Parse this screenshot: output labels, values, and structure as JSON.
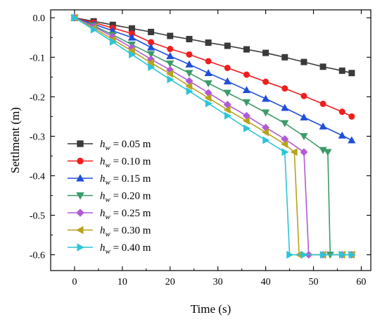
{
  "chart_data": {
    "type": "line",
    "xlabel": "Time (s)",
    "ylabel": "Settlment (m)",
    "xlim": [
      -5,
      62
    ],
    "ylim": [
      -0.64,
      0.02
    ],
    "xticks": [
      "0",
      "10",
      "20",
      "30",
      "40",
      "50",
      "60"
    ],
    "yticks": [
      "0.0",
      "-0.1",
      "-0.2",
      "-0.3",
      "-0.4",
      "-0.5",
      "-0.6"
    ],
    "xtick_values": [
      0,
      10,
      20,
      30,
      40,
      50,
      60
    ],
    "ytick_values": [
      0,
      -0.1,
      -0.2,
      -0.3,
      -0.4,
      -0.5,
      -0.6
    ],
    "legend_position": "lower-left",
    "series": [
      {
        "name": "h_w = 0.05 m",
        "legend_var": "h",
        "legend_sub": "w",
        "legend_rest": " = 0.05 m",
        "color": "#3a3a3a",
        "marker": "square",
        "x": [
          0,
          4,
          8,
          12,
          16,
          20,
          24,
          28,
          32,
          36,
          40,
          44,
          48,
          52,
          56,
          58
        ],
        "y": [
          0,
          -0.009,
          -0.018,
          -0.027,
          -0.036,
          -0.046,
          -0.054,
          -0.063,
          -0.071,
          -0.08,
          -0.089,
          -0.1,
          -0.112,
          -0.124,
          -0.134,
          -0.14
        ]
      },
      {
        "name": "h_w = 0.10 m",
        "legend_var": "h",
        "legend_sub": "w",
        "legend_rest": " = 0.10 m",
        "color": "#ef1f1f",
        "marker": "circle",
        "x": [
          0,
          4,
          8,
          12,
          16,
          20,
          24,
          28,
          32,
          36,
          40,
          44,
          48,
          52,
          56,
          58
        ],
        "y": [
          0,
          -0.012,
          -0.026,
          -0.04,
          -0.062,
          -0.079,
          -0.093,
          -0.11,
          -0.127,
          -0.144,
          -0.162,
          -0.179,
          -0.198,
          -0.218,
          -0.238,
          -0.25
        ]
      },
      {
        "name": "h_w = 0.15 m",
        "legend_var": "h",
        "legend_sub": "w",
        "legend_rest": " = 0.15 m",
        "color": "#1f4fd8",
        "marker": "triangle-up",
        "x": [
          0,
          4,
          8,
          12,
          16,
          20,
          24,
          28,
          32,
          36,
          40,
          44,
          48,
          52,
          56,
          58
        ],
        "y": [
          0,
          -0.016,
          -0.033,
          -0.05,
          -0.075,
          -0.097,
          -0.118,
          -0.14,
          -0.161,
          -0.183,
          -0.205,
          -0.228,
          -0.252,
          -0.275,
          -0.298,
          -0.31
        ]
      },
      {
        "name": "h_w = 0.20 m",
        "legend_var": "h",
        "legend_sub": "w",
        "legend_rest": " = 0.20 m",
        "color": "#3d9a6a",
        "marker": "triangle-down",
        "x": [
          0,
          4,
          8,
          12,
          16,
          20,
          24,
          28,
          32,
          36,
          40,
          44,
          48,
          52,
          53,
          53.5,
          56,
          58
        ],
        "y": [
          0,
          -0.02,
          -0.043,
          -0.068,
          -0.092,
          -0.116,
          -0.14,
          -0.166,
          -0.19,
          -0.214,
          -0.24,
          -0.267,
          -0.3,
          -0.335,
          -0.34,
          -0.6,
          -0.6,
          -0.6
        ]
      },
      {
        "name": "h_w = 0.25 m",
        "legend_var": "h",
        "legend_sub": "w",
        "legend_rest": " = 0.25 m",
        "color": "#b25ad6",
        "marker": "diamond",
        "x": [
          0,
          4,
          8,
          12,
          16,
          20,
          24,
          28,
          32,
          36,
          40,
          44,
          48,
          49,
          52,
          56,
          58
        ],
        "y": [
          0,
          -0.022,
          -0.048,
          -0.076,
          -0.105,
          -0.132,
          -0.16,
          -0.19,
          -0.22,
          -0.248,
          -0.278,
          -0.307,
          -0.34,
          -0.6,
          -0.6,
          -0.6,
          -0.6
        ]
      },
      {
        "name": "h_w = 0.30 m",
        "legend_var": "h",
        "legend_sub": "w",
        "legend_rest": " = 0.30 m",
        "color": "#b8a31a",
        "marker": "triangle-left",
        "x": [
          0,
          4,
          8,
          12,
          16,
          20,
          24,
          28,
          32,
          36,
          40,
          44,
          46,
          47,
          52,
          56,
          58
        ],
        "y": [
          0,
          -0.026,
          -0.055,
          -0.084,
          -0.114,
          -0.142,
          -0.173,
          -0.203,
          -0.233,
          -0.261,
          -0.29,
          -0.32,
          -0.34,
          -0.6,
          -0.6,
          -0.6,
          -0.6
        ]
      },
      {
        "name": "h_w = 0.40 m",
        "legend_var": "h",
        "legend_sub": "w",
        "legend_rest": " = 0.40 m",
        "color": "#2ec4d6",
        "marker": "triangle-right",
        "x": [
          0,
          4,
          8,
          12,
          16,
          20,
          24,
          28,
          32,
          36,
          40,
          44,
          45,
          48,
          52,
          56,
          58
        ],
        "y": [
          0,
          -0.03,
          -0.061,
          -0.093,
          -0.125,
          -0.156,
          -0.186,
          -0.217,
          -0.248,
          -0.28,
          -0.31,
          -0.34,
          -0.6,
          -0.6,
          -0.6,
          -0.6,
          -0.6
        ]
      }
    ]
  }
}
